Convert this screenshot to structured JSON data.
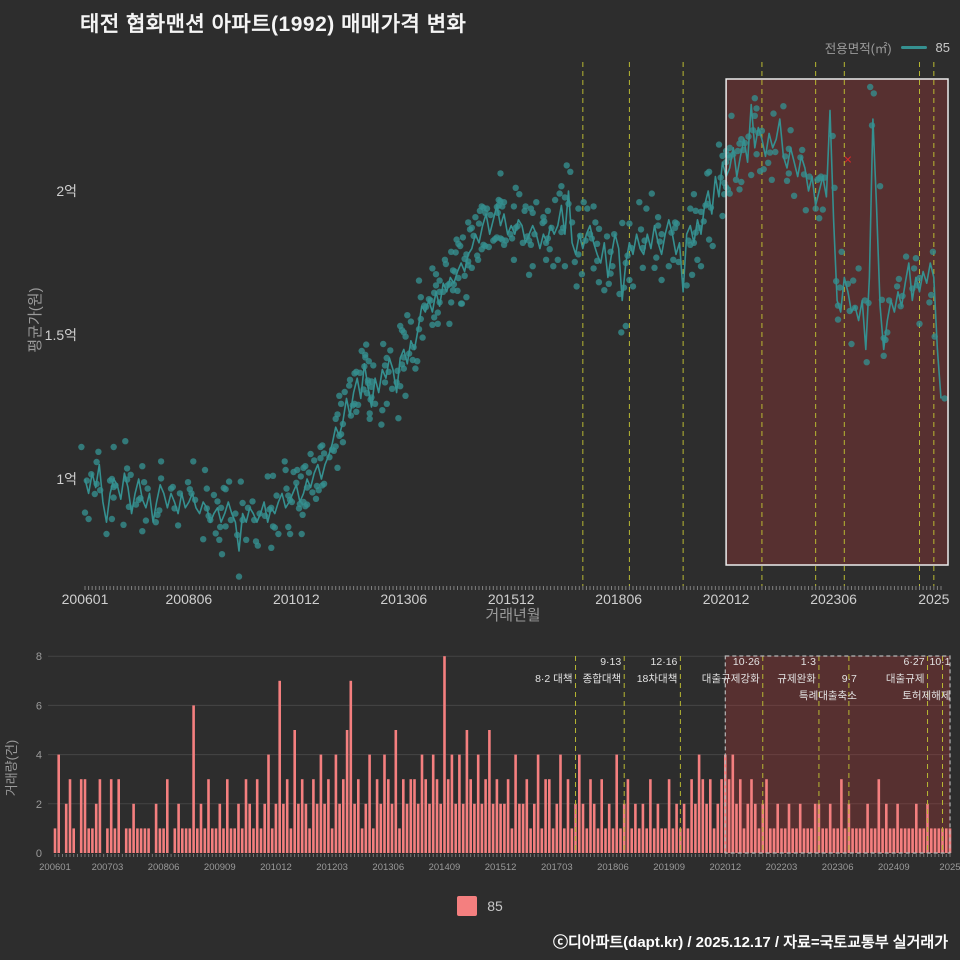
{
  "page": {
    "title": "태전 협화맨션 아파트(1992) 매매가격 변화",
    "footer_credit": "ⓒ디아파트(dapt.kr) / 2025.12.17 / 자료=국토교통부 실거래가",
    "background_color": "#2d2d2d"
  },
  "legend_top": {
    "label": "전용면적(㎡)",
    "series": "85",
    "color": "#359090"
  },
  "legend_bottom": {
    "series": "85",
    "color": "#f47f7f"
  },
  "styles": {
    "line_color": "#359090",
    "bar_color": "#f47f7f",
    "policy_line_color": "#b8b832",
    "highlight_fill": "rgba(185,55,55,0.30)",
    "highlight_border": "#ececec",
    "highlight_border_bottom": "#b5b5b5",
    "marker_color": "#d42a2a",
    "axis_text": "#cfcfcf",
    "axis_title": "#9a9a9a"
  },
  "highlight_region": {
    "start": "2020-12",
    "start_month": 179
  },
  "policy_annotations": [
    {
      "month": 139,
      "texts": [
        {
          "t": "8·2 대책",
          "row": 2
        }
      ]
    },
    {
      "month": 152,
      "texts": [
        {
          "t": "9·13",
          "row": 1
        },
        {
          "t": "종합대책",
          "row": 2
        }
      ]
    },
    {
      "month": 167,
      "texts": [
        {
          "t": "12·16",
          "row": 1
        },
        {
          "t": "18차대책",
          "row": 2
        }
      ]
    },
    {
      "month": 189,
      "texts": [
        {
          "t": "10·26",
          "row": 1
        },
        {
          "t": "대출규제강화",
          "row": 2
        }
      ]
    },
    {
      "month": 204,
      "texts": [
        {
          "t": "1·3",
          "row": 1
        },
        {
          "t": "규제완화",
          "row": 2
        }
      ]
    },
    {
      "month": 212,
      "dx": 8,
      "texts": [
        {
          "t": "9·7",
          "row": 2
        },
        {
          "t": "특례대출축소",
          "row": 3
        }
      ]
    },
    {
      "month": 233,
      "texts": [
        {
          "t": "6·27",
          "row": 1
        },
        {
          "t": "대출규제",
          "row": 2
        }
      ]
    },
    {
      "month": 237,
      "dx": 8,
      "texts": [
        {
          "t": "10·1",
          "row": 1
        },
        {
          "t": "토허제해제",
          "row": 3
        }
      ]
    }
  ],
  "chart_data": [
    {
      "type": "line",
      "series_name": "85",
      "ylabel": "평균가(원)",
      "xlabel": "거래년월",
      "x_start": "2006-01",
      "x_end": "2025-12",
      "ylim_eok": [
        0.68,
        2.45
      ],
      "y_ticks": [
        {
          "label": "1억",
          "value": 1.0
        },
        {
          "label": "1.5억",
          "value": 1.5
        },
        {
          "label": "2억",
          "value": 2.0
        }
      ],
      "x_ticks": [
        {
          "label": "200601",
          "month": 0
        },
        {
          "label": "200806",
          "month": 29
        },
        {
          "label": "201012",
          "month": 59
        },
        {
          "label": "201306",
          "month": 89
        },
        {
          "label": "201512",
          "month": 119
        },
        {
          "label": "201806",
          "month": 149
        },
        {
          "label": "202012",
          "month": 179
        },
        {
          "label": "202306",
          "month": 209
        },
        {
          "label": "2025",
          "month": 237
        }
      ],
      "outlier_marker": {
        "month": 213,
        "price_eok": 2.11,
        "symbol": "✕"
      },
      "monthly_avg_price_eok": [
        1.0,
        0.95,
        1.02,
        0.97,
        1.05,
        0.92,
        0.85,
        0.95,
        1.0,
        0.98,
        0.93,
        1.02,
        0.97,
        0.88,
        0.95,
        1.0,
        0.93,
        0.9,
        0.95,
        0.85,
        0.92,
        0.98,
        0.95,
        0.9,
        0.95,
        0.92,
        0.88,
        0.95,
        0.9,
        0.92,
        0.95,
        0.9,
        0.88,
        0.92,
        0.9,
        0.85,
        0.88,
        0.9,
        0.85,
        0.88,
        0.92,
        0.88,
        0.85,
        0.75,
        0.88,
        0.85,
        0.9,
        0.88,
        0.85,
        0.88,
        0.92,
        0.85,
        0.9,
        0.88,
        0.92,
        0.95,
        0.9,
        0.92,
        0.95,
        0.98,
        0.92,
        0.95,
        1.0,
        0.97,
        1.02,
        1.05,
        1.0,
        1.05,
        1.08,
        1.12,
        1.18,
        1.15,
        1.2,
        1.28,
        1.22,
        1.3,
        1.35,
        1.28,
        1.4,
        1.32,
        1.25,
        1.35,
        1.3,
        1.38,
        1.35,
        1.42,
        1.38,
        1.3,
        1.42,
        1.45,
        1.4,
        1.48,
        1.45,
        1.52,
        1.6,
        1.58,
        1.62,
        1.58,
        1.65,
        1.6,
        1.68,
        1.65,
        1.7,
        1.68,
        1.72,
        1.75,
        1.72,
        1.78,
        1.8,
        1.85,
        1.82,
        1.88,
        1.92,
        1.85,
        1.9,
        1.95,
        1.88,
        1.92,
        1.85,
        1.88,
        1.85,
        1.9,
        1.88,
        1.82,
        1.85,
        1.88,
        1.85,
        1.8,
        1.85,
        1.82,
        1.88,
        1.85,
        1.88,
        1.95,
        1.85,
        2.0,
        1.82,
        1.78,
        1.85,
        1.8,
        1.85,
        1.88,
        1.82,
        1.78,
        1.75,
        1.82,
        1.7,
        1.78,
        1.85,
        1.8,
        1.62,
        1.75,
        1.82,
        1.78,
        1.85,
        1.8,
        1.78,
        1.85,
        1.8,
        1.88,
        1.82,
        1.78,
        1.85,
        1.9,
        1.85,
        1.78,
        1.82,
        1.65,
        1.85,
        1.88,
        1.82,
        1.9,
        1.85,
        1.95,
        2.0,
        1.92,
        2.05,
        1.98,
        2.1,
        2.05,
        2.08,
        2.15,
        2.05,
        2.12,
        2.18,
        2.1,
        2.3,
        2.15,
        2.22,
        2.18,
        2.12,
        2.2,
        2.15,
        2.18,
        2.25,
        2.12,
        2.08,
        2.15,
        2.1,
        2.05,
        2.12,
        2.08,
        2.0,
        2.05,
        1.95,
        2.0,
        2.05,
        1.98,
        2.28,
        1.9,
        1.62,
        1.58,
        1.7,
        1.65,
        1.58,
        1.6,
        1.55,
        1.62,
        1.45,
        1.7,
        2.25,
        1.95,
        1.6,
        1.45,
        1.55,
        1.62,
        1.58,
        1.65,
        1.6,
        1.68,
        1.75,
        1.62,
        1.7,
        1.65,
        1.72,
        1.68,
        1.75,
        1.7,
        1.45,
        1.28
      ]
    },
    {
      "type": "bar",
      "series_name": "85",
      "ylabel": "거래량(건)",
      "ylim": [
        0,
        8
      ],
      "y_ticks": [
        0,
        2,
        4,
        6,
        8
      ],
      "x_ticks": [
        {
          "label": "200601",
          "month": 0
        },
        {
          "label": "200703",
          "month": 14
        },
        {
          "label": "200806",
          "month": 29
        },
        {
          "label": "200909",
          "month": 44
        },
        {
          "label": "201012",
          "month": 59
        },
        {
          "label": "201203",
          "month": 74
        },
        {
          "label": "201306",
          "month": 89
        },
        {
          "label": "201409",
          "month": 104
        },
        {
          "label": "201512",
          "month": 119
        },
        {
          "label": "201703",
          "month": 134
        },
        {
          "label": "201806",
          "month": 149
        },
        {
          "label": "201909",
          "month": 164
        },
        {
          "label": "202012",
          "month": 179
        },
        {
          "label": "202203",
          "month": 194
        },
        {
          "label": "202306",
          "month": 209
        },
        {
          "label": "202409",
          "month": 224
        },
        {
          "label": "2025",
          "month": 239
        }
      ],
      "monthly_volume": [
        1,
        4,
        0,
        2,
        3,
        1,
        0,
        3,
        3,
        1,
        1,
        2,
        3,
        0,
        1,
        3,
        1,
        3,
        0,
        1,
        1,
        2,
        1,
        1,
        1,
        1,
        0,
        2,
        1,
        1,
        3,
        0,
        1,
        2,
        1,
        1,
        1,
        6,
        1,
        2,
        1,
        3,
        1,
        1,
        2,
        1,
        3,
        1,
        1,
        2,
        1,
        3,
        2,
        1,
        3,
        1,
        2,
        4,
        1,
        2,
        7,
        2,
        3,
        1,
        5,
        2,
        3,
        2,
        1,
        3,
        2,
        4,
        2,
        3,
        1,
        4,
        2,
        3,
        5,
        7,
        2,
        3,
        1,
        2,
        4,
        1,
        3,
        2,
        4,
        3,
        2,
        5,
        1,
        3,
        2,
        3,
        3,
        2,
        4,
        3,
        2,
        4,
        3,
        2,
        8,
        3,
        4,
        2,
        4,
        2,
        5,
        3,
        2,
        4,
        2,
        3,
        5,
        2,
        3,
        2,
        2,
        3,
        1,
        4,
        2,
        2,
        3,
        1,
        2,
        4,
        1,
        3,
        3,
        1,
        2,
        4,
        1,
        3,
        1,
        2,
        4,
        2,
        1,
        3,
        2,
        1,
        3,
        1,
        2,
        1,
        4,
        1,
        2,
        3,
        1,
        2,
        1,
        2,
        1,
        3,
        1,
        2,
        1,
        1,
        3,
        1,
        2,
        1,
        2,
        1,
        3,
        2,
        4,
        3,
        2,
        3,
        1,
        2,
        3,
        4,
        3,
        4,
        2,
        3,
        1,
        2,
        3,
        2,
        1,
        2,
        3,
        1,
        1,
        2,
        1,
        1,
        2,
        1,
        1,
        2,
        1,
        1,
        1,
        2,
        2,
        1,
        1,
        2,
        1,
        1,
        3,
        1,
        2,
        1,
        1,
        1,
        1,
        2,
        1,
        1,
        3,
        1,
        2,
        1,
        1,
        2,
        1,
        1,
        1,
        1,
        2,
        1,
        1,
        2,
        1,
        1,
        1,
        1,
        1,
        1
      ]
    }
  ]
}
